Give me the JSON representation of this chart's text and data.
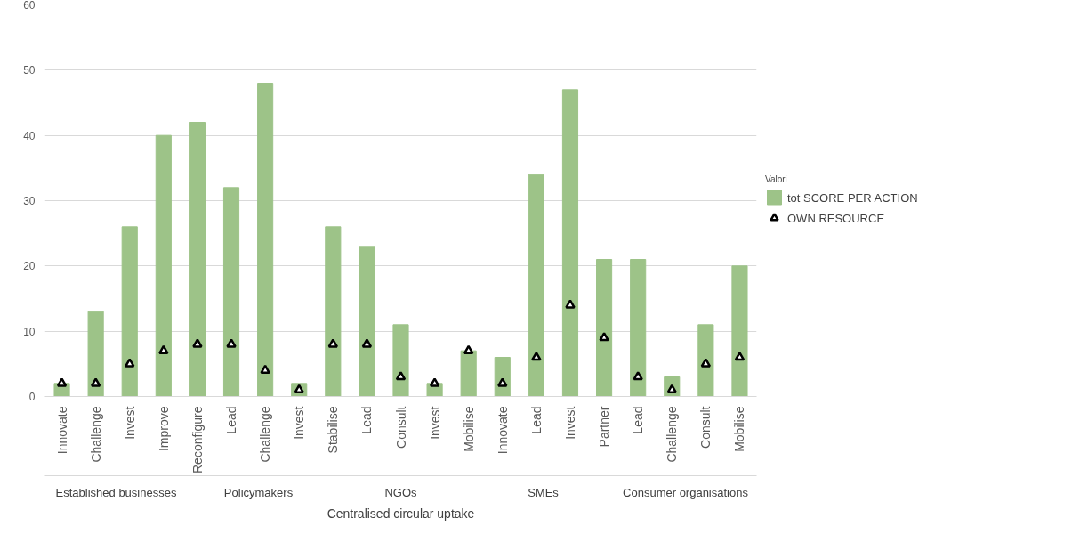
{
  "chart_data": {
    "type": "bar",
    "xlabel": "Centralised circular uptake",
    "legend_title": "Valori",
    "categories": [
      "Innovate",
      "Challenge",
      "Invest",
      "Improve",
      "Reconfigure",
      "Lead",
      "Challenge",
      "Invest",
      "Stabilise",
      "Lead",
      "Consult",
      "Invest",
      "Mobilise",
      "Innovate",
      "Lead",
      "Invest",
      "Partner",
      "Lead",
      "Challenge",
      "Consult",
      "Mobilise"
    ],
    "series": [
      {
        "name": "tot SCORE PER ACTION",
        "color": "#9dc388",
        "values": [
          2,
          13,
          26,
          40,
          42,
          32,
          48,
          2,
          26,
          23,
          11,
          2,
          7,
          6,
          34,
          47,
          21,
          21,
          3,
          11,
          20
        ]
      },
      {
        "name": "OWN RESOURCE",
        "type": "scatter",
        "marker": "triangle",
        "color": "#000000",
        "values": [
          2,
          2,
          5,
          7,
          8,
          8,
          4,
          1,
          8,
          8,
          3,
          2,
          7,
          2,
          6,
          14,
          9,
          3,
          1,
          5,
          6
        ]
      }
    ],
    "annotations": [
      "Established businesses",
      "Policymakers",
      "NGOs",
      "SMEs",
      "Consumer organisations"
    ],
    "ylim": [
      0,
      60
    ],
    "yticks": [
      0,
      10,
      20,
      30,
      40,
      50,
      60
    ],
    "grid": "y",
    "legend": "right"
  }
}
